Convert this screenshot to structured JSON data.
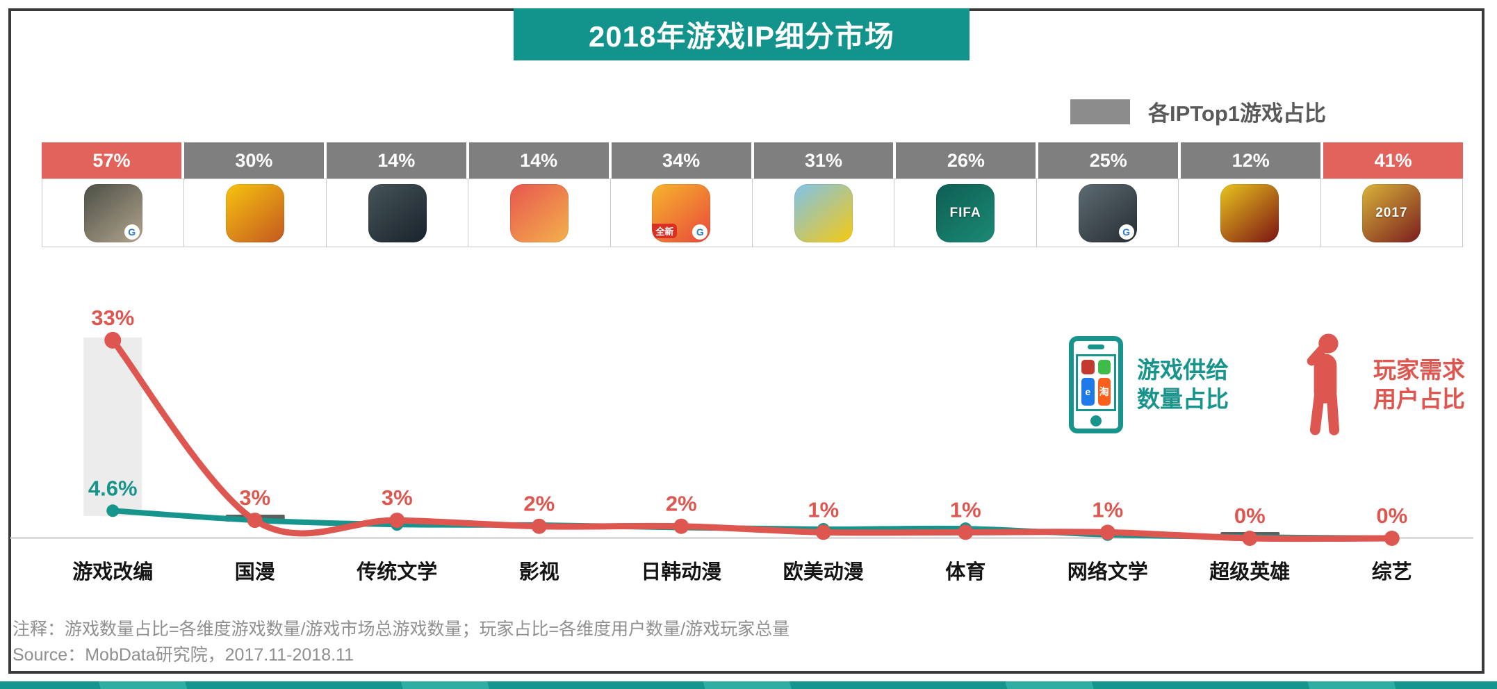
{
  "page": {
    "title": "2018年游戏IP细分市场",
    "top_legend": {
      "label": "各IPTop1游戏占比",
      "swatch_color": "#8C8C8C"
    },
    "footer": {
      "note": "注释：游戏数量占比=各维度游戏数量/游戏市场总游戏数量；玩家占比=各维度用户数量/游戏玩家总量",
      "source": "Source：MobData研究院，2017.11-2018.11"
    },
    "colors": {
      "teal": "#17948C",
      "title_bg": "#12948C",
      "red": "#DD564F",
      "band_red": "#E2625C",
      "band_gray": "#7F7F7F",
      "frame": "#3A3A3A",
      "baseline": "#DCDCDC",
      "highlight_column": "#ECECEC",
      "gray_dash": "#5E5E5E",
      "footer_text": "#8F8F8F"
    }
  },
  "mid_legend": {
    "supply": {
      "line1": "游戏供给",
      "line2": "数量占比",
      "icon": "smartphone-icon",
      "apps": [
        {
          "name": "honor-of-kings-mini-icon",
          "color": "#C23B2E",
          "glyph": ""
        },
        {
          "name": "wechat-mini-icon",
          "color": "#3FBB49",
          "glyph": ""
        },
        {
          "name": "eleme-mini-icon",
          "color": "#1E7AE8",
          "glyph": "e"
        },
        {
          "name": "taobao-mini-icon",
          "color": "#F85F1D",
          "glyph": "淘"
        }
      ]
    },
    "demand": {
      "line1": "玩家需求",
      "line2": "用户占比",
      "icon": "thinking-person-icon"
    }
  },
  "icons": [
    {
      "name": "battle-royale-shooter-icon",
      "colors": [
        "#4A4F45",
        "#B3A48E"
      ],
      "tencent_g": true,
      "label": "",
      "badge": ""
    },
    {
      "name": "boonie-bears-icon",
      "colors": [
        "#F6C410",
        "#C4571F"
      ],
      "tencent_g": false,
      "label": "",
      "badge": ""
    },
    {
      "name": "xianxia-swordsman-icon",
      "colors": [
        "#46555A",
        "#18222A"
      ],
      "tencent_g": false,
      "label": "",
      "badge": ""
    },
    {
      "name": "pink-anime-girl-icon",
      "colors": [
        "#E8564F",
        "#F3B14C"
      ],
      "tencent_g": false,
      "label": "",
      "badge": ""
    },
    {
      "name": "naruto-anime-icon",
      "colors": [
        "#F7B52C",
        "#E8483B"
      ],
      "tencent_g": true,
      "label": "",
      "badge": "全新"
    },
    {
      "name": "minion-adventurer-icon",
      "colors": [
        "#7EC3EA",
        "#F6C910"
      ],
      "tencent_g": false,
      "label": "",
      "badge": ""
    },
    {
      "name": "fifa-football-icon",
      "colors": [
        "#0E5E54",
        "#1B8A74"
      ],
      "tencent_g": false,
      "label": "FIFA",
      "badge": ""
    },
    {
      "name": "zetianji-heroine-icon",
      "colors": [
        "#5D6B72",
        "#262D33"
      ],
      "tencent_g": true,
      "label": "",
      "badge": ""
    },
    {
      "name": "yellow-superhero-icon",
      "colors": [
        "#E8C51F",
        "#7C1212"
      ],
      "tencent_g": false,
      "label": "",
      "badge": ""
    },
    {
      "name": "variety-star-2017-icon",
      "colors": [
        "#D8B43A",
        "#7A1D1D"
      ],
      "tencent_g": false,
      "label": "2017",
      "badge": ""
    }
  ],
  "chart_data": {
    "type": "line",
    "title": "2018年游戏IP细分市场",
    "xlabel": "",
    "ylabel": "",
    "ylim": [
      0,
      35
    ],
    "grid": false,
    "legend_position": "middle-right",
    "categories": [
      "游戏改编",
      "国漫",
      "传统文学",
      "影视",
      "日韩动漫",
      "欧美动漫",
      "体育",
      "网络文学",
      "超级英雄",
      "综艺"
    ],
    "top_band": {
      "label": "各IPTop1游戏占比",
      "values": [
        57,
        30,
        14,
        14,
        34,
        31,
        26,
        25,
        12,
        41
      ],
      "red_highlight_indices": [
        0,
        9
      ]
    },
    "series": [
      {
        "name": "游戏供给数量占比",
        "color": "#17948C",
        "values": [
          4.6,
          3.0,
          2.3,
          2.2,
          1.8,
          1.5,
          1.6,
          0.6,
          0.2,
          0
        ],
        "labels": [
          "4.6%",
          "",
          "",
          "",
          "",
          "",
          "",
          "",
          "",
          ""
        ],
        "note": "only first point labeled; other values estimated from pixels"
      },
      {
        "name": "玩家需求用户占比",
        "color": "#DD564F",
        "values": [
          33,
          3,
          3,
          2,
          2,
          1,
          1,
          1,
          0,
          0
        ],
        "labels": [
          "33%",
          "3%",
          "3%",
          "2%",
          "2%",
          "1%",
          "1%",
          "1%",
          "0%",
          "0%"
        ]
      }
    ],
    "gray_dash_marker_categories": [
      "国漫",
      "超级英雄"
    ],
    "highlight_column_category": "游戏改编"
  }
}
